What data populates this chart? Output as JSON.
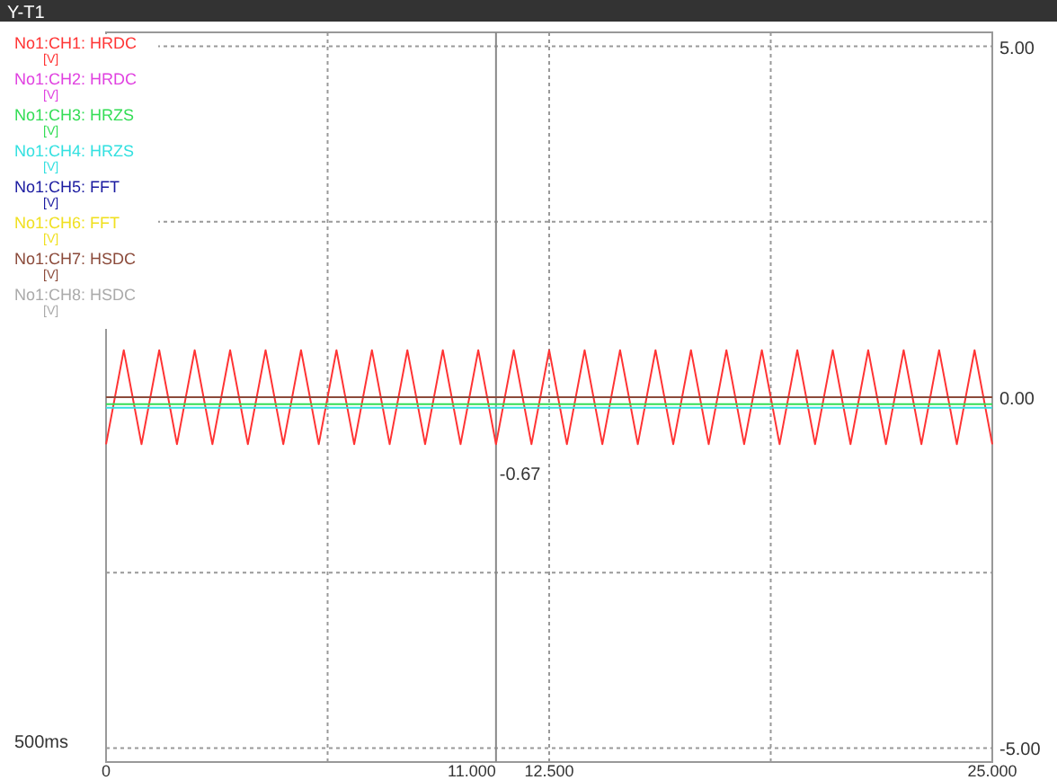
{
  "chart_data": {
    "type": "line",
    "title": "Y-T1",
    "ylabel": "[V]",
    "annotations": [
      {
        "text": "-0.67",
        "x": 11,
        "y": -0.67
      },
      "500ms"
    ],
    "xlim": [
      0,
      25
    ],
    "xticks": [
      0,
      {
        "value": 6.25,
        "label": null
      },
      {
        "value": 12.5,
        "label": "12.500"
      },
      {
        "value": 18.75,
        "label": null
      },
      {
        "value": 25,
        "label": "25.000"
      }
    ],
    "ylim": [
      -5.2,
      5.2
    ],
    "yticks": [
      {
        "value": -5,
        "label": "-5.00"
      },
      {
        "value": -2.5,
        "label": null
      },
      {
        "value": 0,
        "label": "0.00"
      },
      {
        "value": 2.5,
        "label": null
      },
      {
        "value": 5,
        "label": "5.00"
      }
    ],
    "ref_lines": [
      {
        "axis": "x",
        "value": 11,
        "label": "11.000",
        "color": "#888888"
      }
    ],
    "grid": true,
    "legend": "left",
    "line_style": "solid",
    "series": [
      {
        "name": "No1:CH1: HRDC",
        "color": "#ff3333",
        "x": [
          0,
          0.5,
          1,
          1.5,
          2,
          2.5,
          3,
          3.5,
          4,
          4.5,
          5,
          5.5,
          6,
          6.5,
          7,
          7.5,
          8,
          8.5,
          9,
          9.5,
          10,
          10.5,
          11,
          11.5,
          12,
          12.5,
          13,
          13.5,
          14,
          14.5,
          15,
          15.5,
          16,
          16.5,
          17,
          17.5,
          18,
          18.5,
          19,
          19.5,
          20,
          20.5,
          21,
          21.5,
          22,
          22.5,
          23,
          23.5,
          24,
          24.5,
          25
        ],
        "values": [
          -0.67,
          0.67,
          -0.67,
          0.67,
          -0.67,
          0.67,
          -0.67,
          0.67,
          -0.67,
          0.67,
          -0.67,
          0.67,
          -0.67,
          0.67,
          -0.67,
          0.67,
          -0.67,
          0.67,
          -0.67,
          0.67,
          -0.67,
          0.67,
          -0.67,
          0.67,
          -0.67,
          0.67,
          -0.67,
          0.67,
          -0.67,
          0.67,
          -0.67,
          0.67,
          -0.67,
          0.67,
          -0.67,
          0.67,
          -0.67,
          0.67,
          -0.67,
          0.67,
          -0.67,
          0.67,
          -0.67,
          0.67,
          -0.67,
          0.67,
          -0.67,
          0.67,
          -0.67,
          0.67,
          -0.67
        ]
      },
      {
        "name": "No1:CH2: HRDC",
        "color": "#e040e0"
      },
      {
        "name": "No1:CH3: HRZS",
        "color": "#33dd55",
        "x": [
          0,
          25
        ],
        "values": [
          -0.1,
          -0.1
        ]
      },
      {
        "name": "No1:CH4: HRZS",
        "color": "#33e0e0",
        "x": [
          0,
          25
        ],
        "values": [
          -0.15,
          -0.15
        ]
      },
      {
        "name": "No1:CH5: FFT",
        "color": "#1a1aa0"
      },
      {
        "name": "No1:CH6: FFT",
        "color": "#f0e020"
      },
      {
        "name": "No1:CH7: HSDC",
        "color": "#8b4a3a",
        "x": [
          0,
          25
        ],
        "values": [
          0,
          0
        ]
      },
      {
        "name": "No1:CH8: HSDC",
        "color": "#aaaaaa"
      }
    ]
  }
}
